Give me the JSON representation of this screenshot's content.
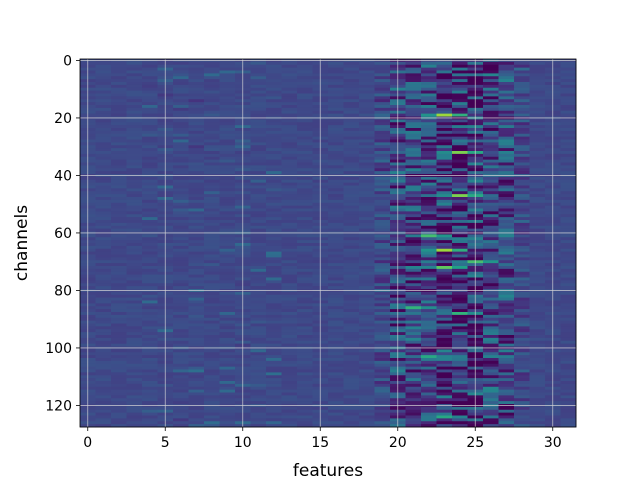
{
  "chart_data": {
    "type": "heatmap",
    "title": "",
    "xlabel": "features",
    "ylabel": "channels",
    "xlim": [
      -0.5,
      31.5
    ],
    "ylim": [
      127.5,
      -0.5
    ],
    "y_inverted": true,
    "n_features": 32,
    "n_channels": 128,
    "xticks": [
      0,
      5,
      10,
      15,
      20,
      25,
      30
    ],
    "yticks": [
      0,
      20,
      40,
      60,
      80,
      100,
      120
    ],
    "grid": true,
    "colormap": "viridis",
    "background_color": "#3b528b",
    "active_band_features": [
      20,
      27
    ],
    "bright_spots": [
      {
        "feature": 23,
        "channel": 19,
        "value": 0.85
      },
      {
        "feature": 24,
        "channel": 32,
        "value": 0.8
      },
      {
        "feature": 24,
        "channel": 47,
        "value": 0.8
      },
      {
        "feature": 22,
        "channel": 61,
        "value": 0.7
      },
      {
        "feature": 23,
        "channel": 66,
        "value": 0.85
      },
      {
        "feature": 23,
        "channel": 72,
        "value": 0.75
      },
      {
        "feature": 25,
        "channel": 70,
        "value": 0.7
      },
      {
        "feature": 21,
        "channel": 86,
        "value": 0.65
      },
      {
        "feature": 24,
        "channel": 88,
        "value": 0.65
      },
      {
        "feature": 22,
        "channel": 103,
        "value": 0.6
      },
      {
        "feature": 23,
        "channel": 124,
        "value": 0.6
      }
    ]
  },
  "axes": {
    "xlabel": "features",
    "ylabel": "channels",
    "xtick_labels": [
      "0",
      "5",
      "10",
      "15",
      "20",
      "25",
      "30"
    ],
    "ytick_labels": [
      "0",
      "20",
      "40",
      "60",
      "80",
      "100",
      "120"
    ]
  }
}
